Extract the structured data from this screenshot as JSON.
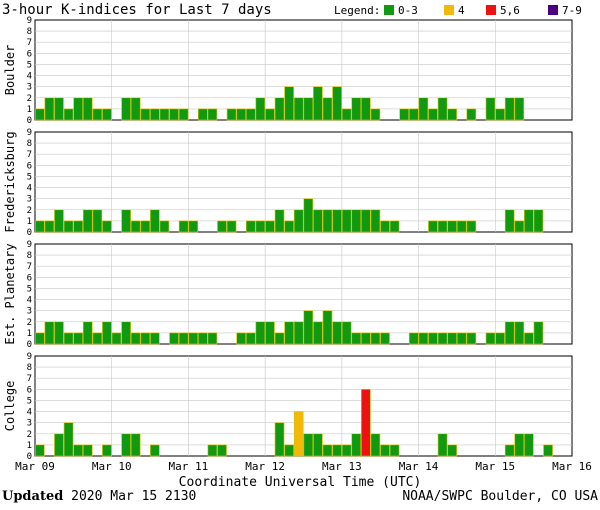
{
  "title": "3-hour K-indices for Last 7 days",
  "footer": {
    "updated_label": "Updated",
    "updated_value": "2020 Mar 15 2130",
    "source": "NOAA/SWPC Boulder, CO USA"
  },
  "chart_data": {
    "type": "bar",
    "title": "3-hour K-indices for Last 7 days",
    "xlabel": "Coordinate Universal Time (UTC)",
    "x_ticks": [
      "Mar 09",
      "Mar 10",
      "Mar 11",
      "Mar 12",
      "Mar 13",
      "Mar 14",
      "Mar 15",
      "Mar 16"
    ],
    "y_ticks": [
      "0",
      "1",
      "2",
      "3",
      "4",
      "5",
      "6",
      "7",
      "8",
      "9"
    ],
    "ylim": [
      0,
      9
    ],
    "grid": true,
    "legend": {
      "label": "Legend:",
      "placement": "top-right",
      "items": [
        {
          "label": "0-3",
          "color": "#119911"
        },
        {
          "label": "4",
          "color": "#f2b90b"
        },
        {
          "label": "5,6",
          "color": "#ee1111"
        },
        {
          "label": "7-9",
          "color": "#4b0082"
        }
      ]
    },
    "series": [
      {
        "name": "Boulder",
        "values": [
          1,
          2,
          2,
          1,
          2,
          2,
          1,
          1,
          0,
          2,
          2,
          1,
          1,
          1,
          1,
          1,
          0,
          1,
          1,
          0,
          1,
          1,
          1,
          2,
          1,
          2,
          3,
          2,
          2,
          3,
          2,
          3,
          1,
          2,
          2,
          1,
          0,
          0,
          1,
          1,
          2,
          1,
          2,
          1,
          0,
          1,
          0,
          2,
          1,
          2,
          2,
          0
        ]
      },
      {
        "name": "Fredericksburg",
        "values": [
          1,
          1,
          2,
          1,
          1,
          2,
          2,
          1,
          0,
          2,
          1,
          1,
          2,
          1,
          0,
          1,
          1,
          0,
          0,
          1,
          1,
          0,
          1,
          1,
          1,
          2,
          1,
          2,
          3,
          2,
          2,
          2,
          2,
          2,
          2,
          2,
          1,
          1,
          0,
          0,
          0,
          1,
          1,
          1,
          1,
          1,
          0,
          0,
          0,
          2,
          1,
          2,
          2,
          0
        ]
      },
      {
        "name": "Est. Planetary",
        "values": [
          1,
          2,
          2,
          1,
          1,
          2,
          1,
          2,
          1,
          2,
          1,
          1,
          1,
          0,
          1,
          1,
          1,
          1,
          1,
          0,
          0,
          1,
          1,
          2,
          2,
          1,
          2,
          2,
          3,
          2,
          3,
          2,
          2,
          1,
          1,
          1,
          1,
          0,
          0,
          1,
          1,
          1,
          1,
          1,
          1,
          1,
          0,
          1,
          1,
          2,
          2,
          1,
          2
        ]
      },
      {
        "name": "College",
        "values": [
          1,
          0,
          2,
          3,
          1,
          1,
          0,
          1,
          0,
          2,
          2,
          0,
          1,
          0,
          0,
          0,
          0,
          0,
          1,
          1,
          0,
          0,
          0,
          0,
          0,
          3,
          1,
          4,
          2,
          2,
          1,
          1,
          1,
          2,
          6,
          2,
          1,
          1,
          0,
          0,
          0,
          0,
          2,
          1,
          0,
          0,
          0,
          0,
          0,
          1,
          2,
          2,
          0,
          1,
          0
        ]
      }
    ],
    "axis_labels": [
      "Boulder",
      "Fredericksburg",
      "Est. Planetary",
      "College"
    ]
  }
}
